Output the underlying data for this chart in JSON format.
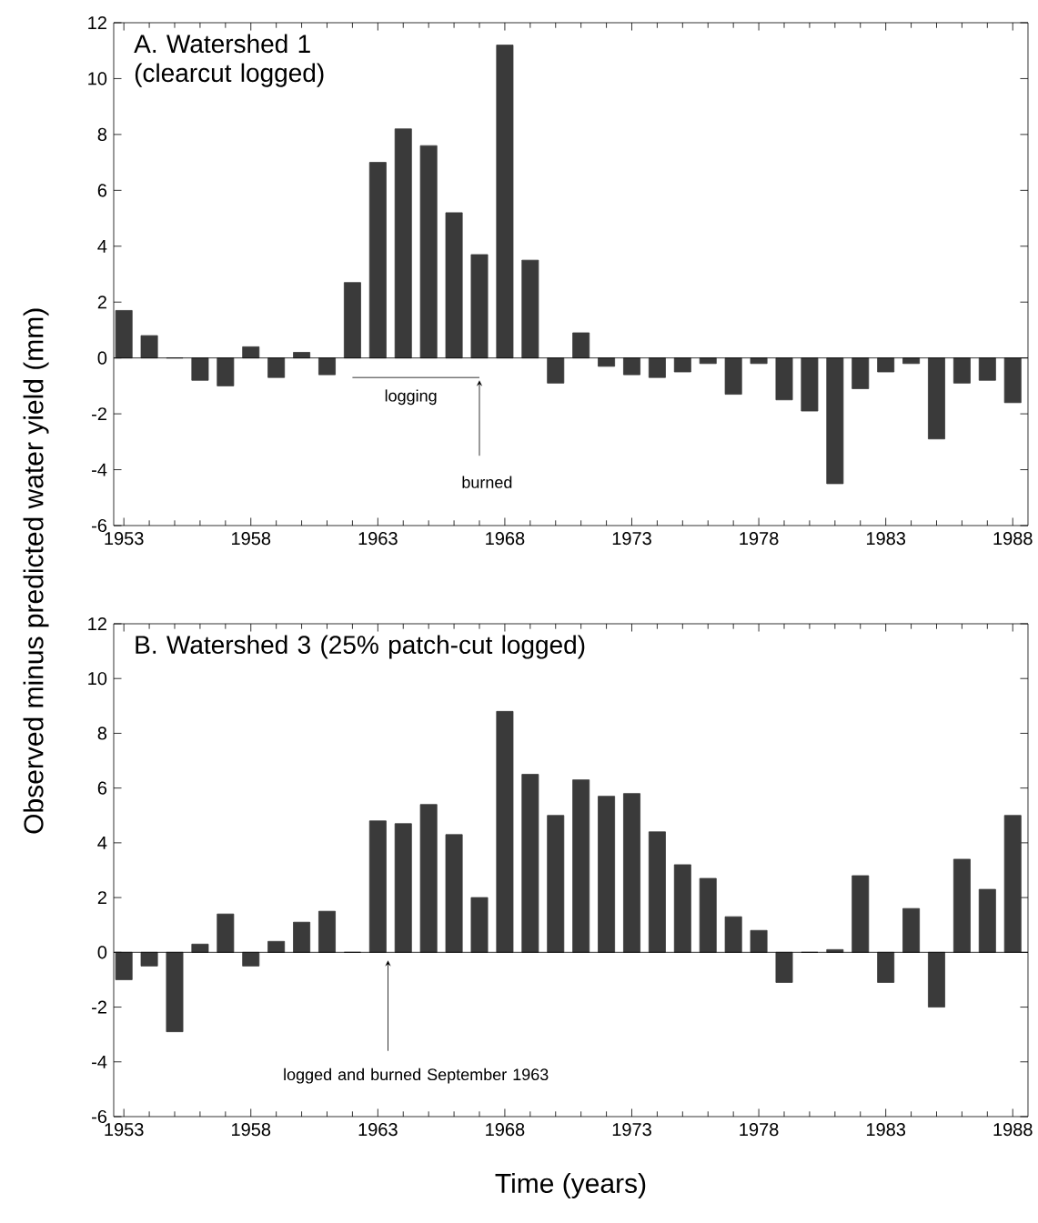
{
  "chart_data": [
    {
      "type": "bar",
      "title": "A. Watershed 1 (clearcut logged)",
      "ylabel": "Observed minus predicted water yield (mm)",
      "x": [
        1953,
        1954,
        1955,
        1956,
        1957,
        1958,
        1959,
        1960,
        1961,
        1962,
        1963,
        1964,
        1965,
        1966,
        1967,
        1968,
        1969,
        1970,
        1971,
        1972,
        1973,
        1974,
        1975,
        1976,
        1977,
        1978,
        1979,
        1980,
        1981,
        1982,
        1983,
        1984,
        1985,
        1986,
        1987,
        1988
      ],
      "values": [
        1.7,
        0.8,
        0,
        -0.8,
        -1.0,
        0.4,
        -0.7,
        0.2,
        -0.6,
        2.7,
        7.0,
        8.2,
        7.6,
        5.2,
        3.7,
        11.2,
        3.5,
        -0.9,
        0.9,
        -0.3,
        -0.6,
        -0.7,
        -0.5,
        -0.2,
        -1.3,
        -0.2,
        -1.5,
        -1.9,
        -4.5,
        -1.1,
        -0.5,
        -0.2,
        -2.9,
        -0.9,
        -0.8,
        -1.6
      ],
      "color": "#3a3a3a",
      "xlim": [
        1952.6,
        1988.6
      ],
      "ylim": [
        -6,
        12
      ],
      "xticks": [
        1953,
        1958,
        1963,
        1968,
        1973,
        1978,
        1983,
        1988
      ],
      "yticks": [
        -6,
        -4,
        -2,
        0,
        2,
        4,
        6,
        8,
        10,
        12
      ],
      "annotations": [
        "logging",
        "burned"
      ]
    },
    {
      "type": "bar",
      "title": "B. Watershed 3 (25% patch-cut logged)",
      "xlabel": "Time (years)",
      "x": [
        1953,
        1954,
        1955,
        1956,
        1957,
        1958,
        1959,
        1960,
        1961,
        1962,
        1963,
        1964,
        1965,
        1966,
        1967,
        1968,
        1969,
        1970,
        1971,
        1972,
        1973,
        1974,
        1975,
        1976,
        1977,
        1978,
        1979,
        1980,
        1981,
        1982,
        1983,
        1984,
        1985,
        1986,
        1987,
        1988
      ],
      "values": [
        -1.0,
        -0.5,
        -2.9,
        0.3,
        1.4,
        -0.5,
        0.4,
        1.1,
        1.5,
        0,
        4.8,
        4.7,
        5.4,
        4.3,
        2.0,
        8.8,
        6.5,
        5.0,
        6.3,
        5.7,
        5.8,
        4.4,
        3.2,
        2.7,
        1.3,
        0.8,
        -1.1,
        0,
        0.1,
        2.8,
        -1.1,
        1.6,
        -2.0,
        3.4,
        2.3,
        5.0
      ],
      "color": "#3a3a3a",
      "xlim": [
        1952.6,
        1988.6
      ],
      "ylim": [
        -6,
        12
      ],
      "xticks": [
        1953,
        1958,
        1963,
        1968,
        1973,
        1978,
        1983,
        1988
      ],
      "yticks": [
        -6,
        -4,
        -2,
        0,
        2,
        4,
        6,
        8,
        10,
        12
      ],
      "annotations": [
        "logged and burned September 1963"
      ]
    }
  ]
}
